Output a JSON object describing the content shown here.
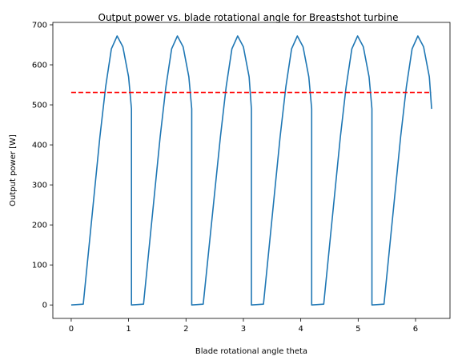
{
  "chart_data": {
    "type": "line",
    "title": "Output power vs. blade rotational angle for Breastshot turbine",
    "xlabel": "Blade rotational angle theta",
    "ylabel": "Output power [W]",
    "xlim": [
      -0.32,
      6.6
    ],
    "ylim": [
      -33.6,
      706
    ],
    "xticks": [
      0,
      1,
      2,
      3,
      4,
      5,
      6
    ],
    "yticks": [
      0,
      100,
      200,
      300,
      400,
      500,
      600,
      700
    ],
    "grid": false,
    "series": [
      {
        "color": "#1f77b4",
        "style": "solid",
        "x": [
          0.0,
          0.21,
          0.5,
          0.6,
          0.7,
          0.8,
          0.9,
          1.0,
          1.05,
          1.05,
          1.26,
          1.55,
          1.65,
          1.75,
          1.85,
          1.95,
          2.05,
          2.1,
          2.1,
          2.3,
          2.6,
          2.7,
          2.8,
          2.9,
          3.0,
          3.1,
          3.14,
          3.14,
          3.35,
          3.64,
          3.74,
          3.84,
          3.94,
          4.04,
          4.14,
          4.19,
          4.19,
          4.4,
          4.69,
          4.79,
          4.89,
          4.99,
          5.09,
          5.19,
          5.24,
          5.24,
          5.45,
          5.74,
          5.84,
          5.94,
          6.04,
          6.14,
          6.24,
          6.28
        ],
        "y": [
          0,
          2,
          420,
          545,
          640,
          672,
          645,
          570,
          490,
          0,
          2,
          420,
          545,
          640,
          672,
          645,
          570,
          490,
          0,
          2,
          420,
          545,
          640,
          672,
          645,
          570,
          490,
          0,
          2,
          420,
          545,
          640,
          672,
          645,
          570,
          490,
          0,
          2,
          420,
          545,
          640,
          672,
          645,
          570,
          490,
          0,
          2,
          420,
          545,
          640,
          672,
          645,
          570,
          490
        ]
      },
      {
        "color": "#ff0000",
        "style": "dashed",
        "x": [
          0.0,
          6.28
        ],
        "y": [
          531,
          531
        ]
      }
    ]
  }
}
